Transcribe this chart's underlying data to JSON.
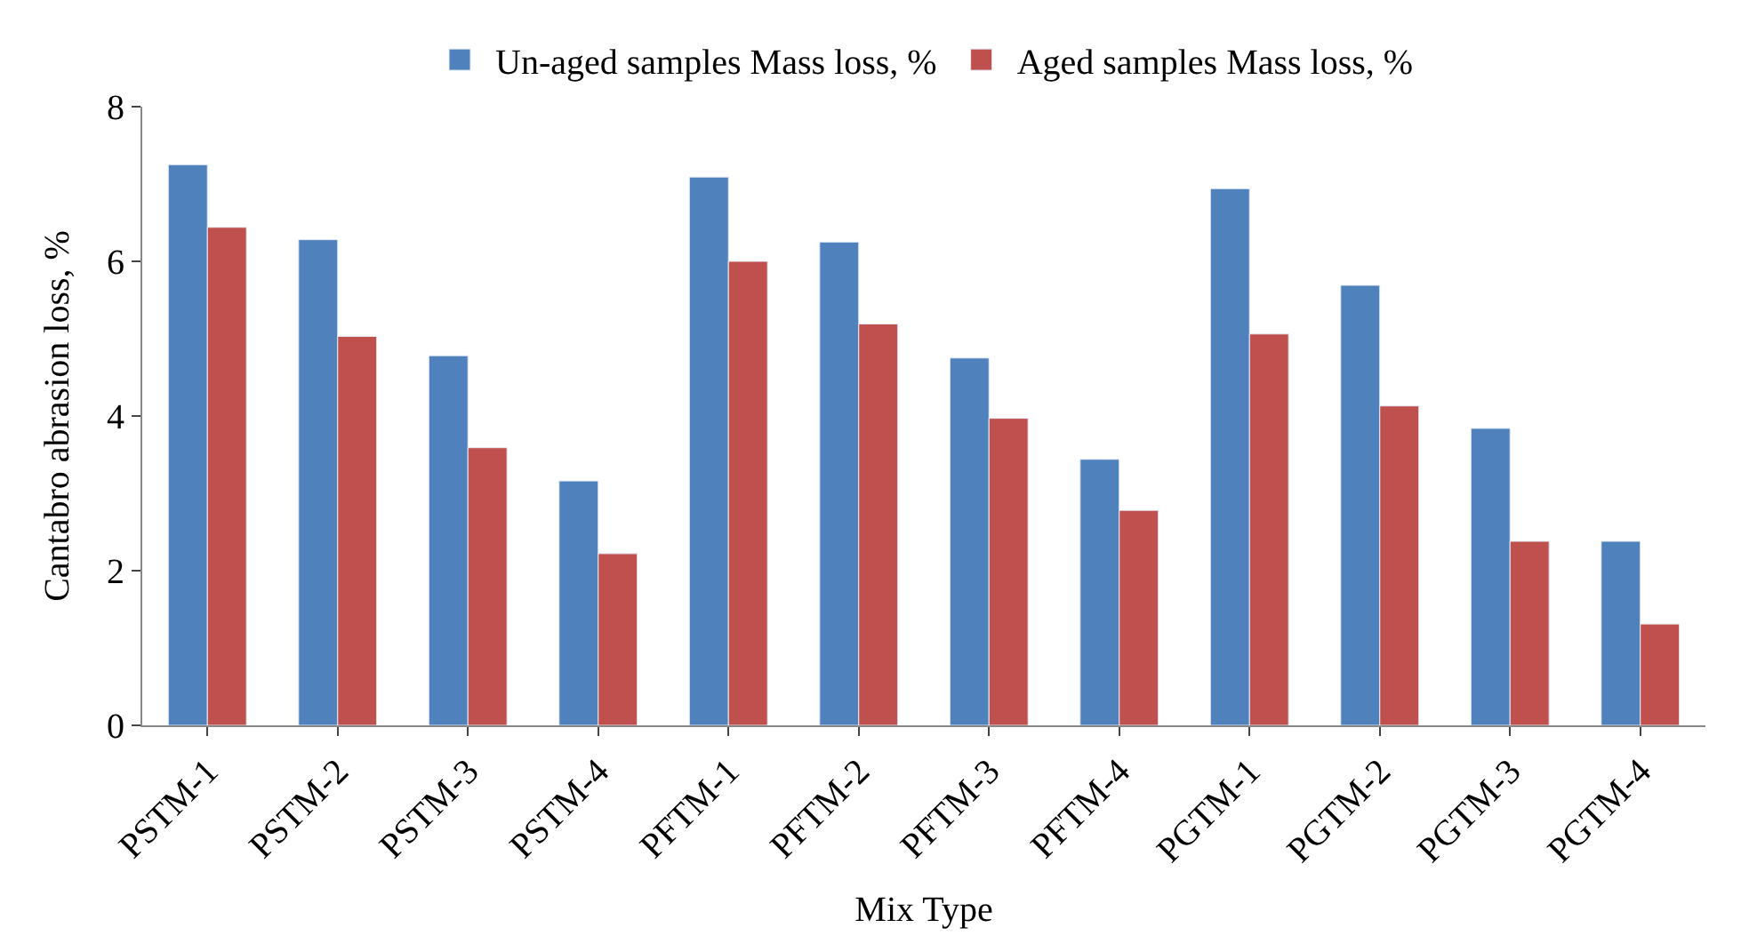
{
  "chart_data": {
    "type": "bar",
    "xlabel": "Mix Type",
    "ylabel": "Cantabro abrasion loss, %",
    "categories": [
      "PSTM-1",
      "PSTM-2",
      "PSTM-3",
      "PSTM-4",
      "PFTM-1",
      "PFTM-2",
      "PFTM-3",
      "PFTM-4",
      "PGTM-1",
      "PGTM-2",
      "PGTM-3",
      "PGTM-4"
    ],
    "series": [
      {
        "name": "Un-aged samples Mass loss, %",
        "color": "#4f81bd",
        "values": [
          7.25,
          6.28,
          4.78,
          3.16,
          7.09,
          6.25,
          4.75,
          3.44,
          6.94,
          5.69,
          3.84,
          2.38
        ]
      },
      {
        "name": "Aged samples Mass loss, %",
        "color": "#c0504d",
        "values": [
          6.44,
          5.03,
          3.59,
          2.22,
          6.0,
          5.19,
          3.97,
          2.78,
          5.06,
          4.13,
          2.38,
          1.31
        ]
      }
    ],
    "ylim": [
      0,
      8
    ],
    "yticks": [
      0,
      2,
      4,
      6,
      8
    ],
    "legend": "top"
  }
}
